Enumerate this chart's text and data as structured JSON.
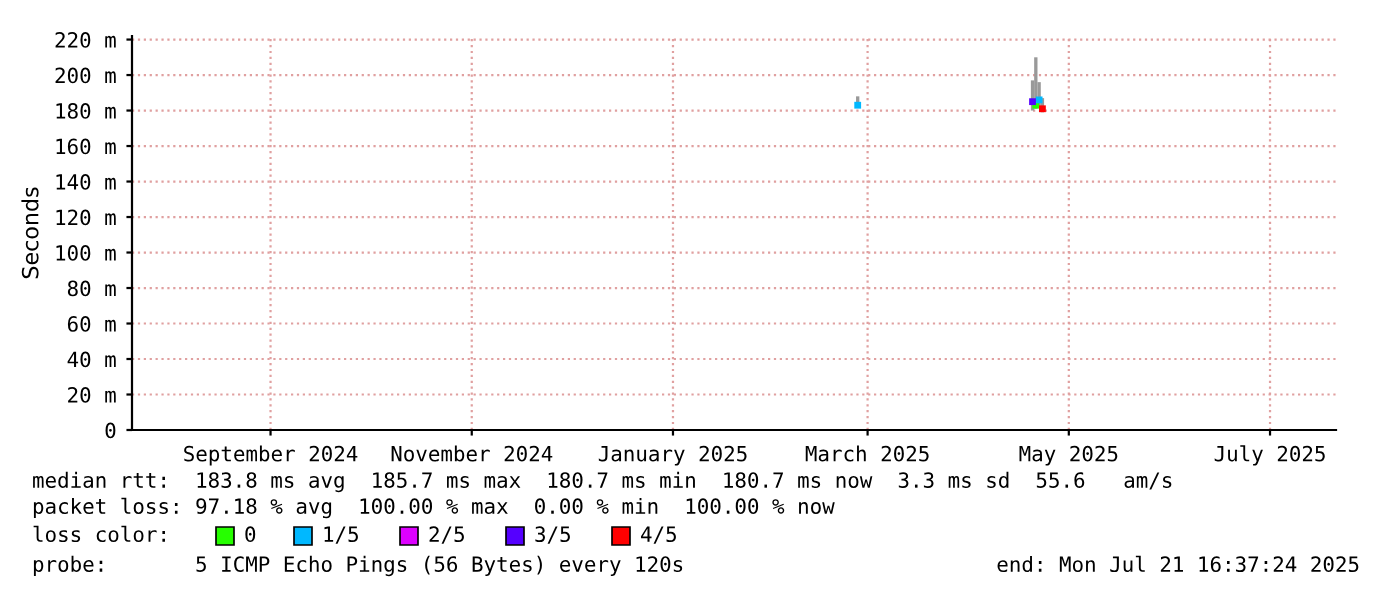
{
  "chart_data": {
    "type": "scatter",
    "ylabel": "Seconds",
    "xlim": [
      "2024-07-21",
      "2025-07-21"
    ],
    "xticks": [
      {
        "value": "2024-09-01",
        "label": "September 2024"
      },
      {
        "value": "2024-11-01",
        "label": "November 2024"
      },
      {
        "value": "2025-01-01",
        "label": "January 2025"
      },
      {
        "value": "2025-03-01",
        "label": "March 2025"
      },
      {
        "value": "2025-05-01",
        "label": "May 2025"
      },
      {
        "value": "2025-07-01",
        "label": "July 2025"
      }
    ],
    "ylim": [
      0,
      222
    ],
    "yticks": [
      0,
      {
        "value": 20,
        "label": "20 m"
      },
      {
        "value": 40,
        "label": "40 m"
      },
      {
        "value": 60,
        "label": "60 m"
      },
      {
        "value": 80,
        "label": "80 m"
      },
      {
        "value": 100,
        "label": "100 m"
      },
      {
        "value": 120,
        "label": "120 m"
      },
      {
        "value": 140,
        "label": "140 m"
      },
      {
        "value": 160,
        "label": "160 m"
      },
      {
        "value": 180,
        "label": "180 m"
      },
      {
        "value": 200,
        "label": "200 m"
      },
      {
        "value": 220,
        "label": "220 m"
      }
    ],
    "grid": true,
    "legend": "bottom",
    "marker": "square",
    "legend_title": "loss color:",
    "series": [
      {
        "name": "0",
        "color": "#26ff00",
        "x": [
          "2025-04-21"
        ],
        "values": [
          183
        ],
        "errors": [
          [
            181,
            210
          ]
        ]
      },
      {
        "name": "1/5",
        "color": "#00b8ff",
        "x": [
          "2025-02-26",
          "2025-04-22"
        ],
        "values": [
          183,
          186
        ],
        "errors": [
          [
            183,
            188
          ],
          [
            182,
            196
          ]
        ]
      },
      {
        "name": "2/5",
        "color": "#dd00ff"
      },
      {
        "name": "3/5",
        "color": "#5500ff",
        "x": [
          "2025-04-20"
        ],
        "values": [
          185
        ],
        "errors": [
          [
            180,
            197
          ]
        ]
      },
      {
        "name": "4/5",
        "color": "#ff0000",
        "x": [
          "2025-04-23"
        ],
        "values": [
          181
        ],
        "errors": [
          [
            179,
            187
          ]
        ]
      }
    ],
    "annotations": [
      "median rtt:  183.8 ms avg  185.7 ms max  180.7 ms min  180.7 ms now  3.3 ms sd  55.6   am/s",
      "packet loss: 97.18 % avg  100.00 % max  0.00 % min  100.00 % now",
      "probe:       5 ICMP Echo Pings (56 Bytes) every 120s",
      "end: Mon Jul 21 16:37:24 2025"
    ]
  }
}
